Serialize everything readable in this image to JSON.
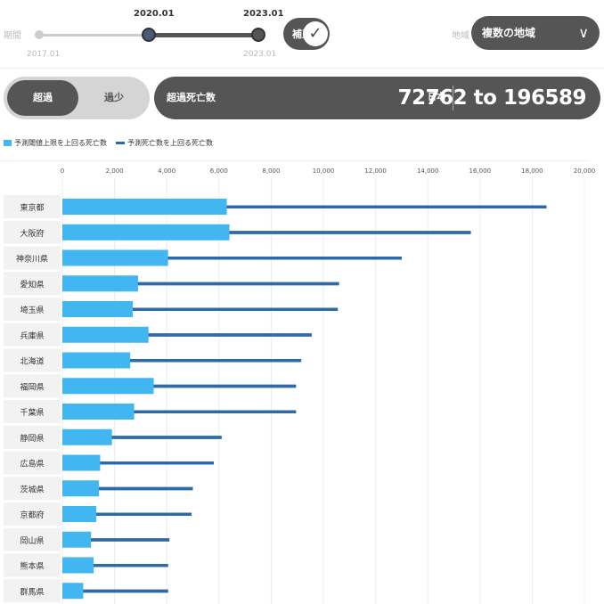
{
  "controls": {
    "period_label": "期間",
    "slider_start_value": "2020.01",
    "slider_end_value": "2023.01",
    "slider_min_caption": "2017.01",
    "slider_max_caption": "2023.01",
    "adjust_label": "補正",
    "adjust_checked": true,
    "region_label": "地域",
    "region_value": "複数の地域"
  },
  "toggle": {
    "active_label": "超過",
    "inactive_label": "過少"
  },
  "summary": {
    "title": "超過死亡数",
    "area": "日本",
    "range": "72762 to 196589"
  },
  "colors": {
    "bar": "#41b6f0",
    "line": "#2e6aa8",
    "panel": "#555555"
  },
  "chart_data": {
    "type": "bar",
    "orientation": "horizontal",
    "xlim": [
      0,
      20000
    ],
    "xticks": [
      "0",
      "2,000",
      "4,000",
      "6,000",
      "8,000",
      "10,000",
      "12,000",
      "14,000",
      "16,000",
      "18,000",
      "20,000"
    ],
    "categories": [
      "東京都",
      "大阪府",
      "神奈川県",
      "愛知県",
      "埼玉県",
      "兵庫県",
      "北海道",
      "福岡県",
      "千葉県",
      "静岡県",
      "広島県",
      "茨城県",
      "京都府",
      "岡山県",
      "熊本県",
      "群馬県"
    ],
    "series": [
      {
        "name": "予測閾値上限を上回る死亡数",
        "style": "bar",
        "values": [
          6300,
          6400,
          4050,
          2900,
          2700,
          3300,
          2600,
          3500,
          2750,
          1900,
          1450,
          1400,
          1300,
          1100,
          1200,
          800
        ]
      },
      {
        "name": "予測死亡数を上回る死亡数",
        "style": "line",
        "values": [
          18550,
          15650,
          13000,
          10600,
          10550,
          9550,
          9150,
          8950,
          8950,
          6100,
          5800,
          5000,
          4950,
          4100,
          4050,
          4050
        ]
      }
    ],
    "grid": true,
    "legend_position": "top-left"
  }
}
